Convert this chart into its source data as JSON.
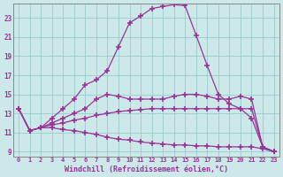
{
  "background_color": "#cce8e8",
  "line_color": "#993399",
  "grid_color": "#99cccc",
  "xlabel": "Windchill (Refroidissement éolien,°C)",
  "xlim": [
    -0.5,
    23.5
  ],
  "ylim": [
    8.5,
    24.5
  ],
  "xticks": [
    0,
    1,
    2,
    3,
    4,
    5,
    6,
    7,
    8,
    9,
    10,
    11,
    12,
    13,
    14,
    15,
    16,
    17,
    18,
    19,
    20,
    21,
    22,
    23
  ],
  "yticks": [
    9,
    11,
    13,
    15,
    17,
    19,
    21,
    23
  ],
  "lines": [
    {
      "x": [
        0,
        1,
        2,
        3,
        4,
        5,
        6,
        7,
        8,
        9,
        10,
        11,
        12,
        13,
        14,
        15,
        16,
        17,
        18,
        19,
        20,
        21,
        22,
        23
      ],
      "y": [
        13.5,
        11.2,
        11.5,
        12.5,
        13.5,
        14.5,
        16.0,
        16.5,
        17.5,
        20.0,
        22.5,
        23.2,
        24.0,
        24.2,
        24.4,
        24.3,
        21.2,
        18.0,
        15.0,
        14.0,
        13.5,
        12.5,
        9.5,
        9.0
      ]
    },
    {
      "x": [
        0,
        1,
        2,
        3,
        4,
        5,
        6,
        7,
        8,
        9,
        10,
        11,
        12,
        13,
        14,
        15,
        16,
        17,
        18,
        19,
        20,
        21,
        22,
        23
      ],
      "y": [
        13.5,
        11.2,
        11.5,
        12.0,
        12.5,
        13.0,
        13.5,
        14.5,
        15.0,
        14.8,
        14.5,
        14.5,
        14.5,
        14.5,
        14.8,
        15.0,
        15.0,
        14.8,
        14.5,
        14.5,
        14.8,
        14.5,
        9.5,
        9.0
      ]
    },
    {
      "x": [
        0,
        1,
        2,
        3,
        4,
        5,
        6,
        7,
        8,
        9,
        10,
        11,
        12,
        13,
        14,
        15,
        16,
        17,
        18,
        19,
        20,
        21,
        22,
        23
      ],
      "y": [
        13.5,
        11.2,
        11.5,
        11.8,
        12.0,
        12.3,
        12.5,
        12.8,
        13.0,
        13.2,
        13.3,
        13.4,
        13.5,
        13.5,
        13.5,
        13.5,
        13.5,
        13.5,
        13.5,
        13.5,
        13.5,
        13.5,
        9.5,
        9.0
      ]
    },
    {
      "x": [
        0,
        1,
        2,
        3,
        4,
        5,
        6,
        7,
        8,
        9,
        10,
        11,
        12,
        13,
        14,
        15,
        16,
        17,
        18,
        19,
        20,
        21,
        22,
        23
      ],
      "y": [
        13.5,
        11.2,
        11.5,
        11.5,
        11.3,
        11.2,
        11.0,
        10.8,
        10.5,
        10.3,
        10.2,
        10.0,
        9.9,
        9.8,
        9.7,
        9.7,
        9.6,
        9.6,
        9.5,
        9.5,
        9.5,
        9.5,
        9.3,
        9.0
      ]
    }
  ]
}
